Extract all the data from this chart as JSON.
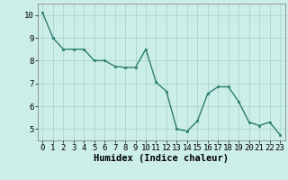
{
  "x": [
    0,
    1,
    2,
    3,
    4,
    5,
    6,
    7,
    8,
    9,
    10,
    11,
    12,
    13,
    14,
    15,
    16,
    17,
    18,
    19,
    20,
    21,
    22,
    23
  ],
  "y": [
    10.1,
    9.0,
    8.5,
    8.5,
    8.5,
    8.0,
    8.0,
    7.75,
    7.7,
    7.7,
    8.5,
    7.05,
    6.65,
    5.0,
    4.9,
    5.35,
    6.55,
    6.85,
    6.85,
    6.2,
    5.3,
    5.15,
    5.3,
    4.75
  ],
  "line_color": "#2d7d6e",
  "marker_color": "#2d7d6e",
  "bg_color": "#cceee8",
  "grid_color": "#aad4ce",
  "xlabel": "Humidex (Indice chaleur)",
  "ylim": [
    4.5,
    10.5
  ],
  "xlim": [
    -0.5,
    23.5
  ],
  "yticks": [
    5,
    6,
    7,
    8,
    9,
    10
  ],
  "xticks": [
    0,
    1,
    2,
    3,
    4,
    5,
    6,
    7,
    8,
    9,
    10,
    11,
    12,
    13,
    14,
    15,
    16,
    17,
    18,
    19,
    20,
    21,
    22,
    23
  ],
  "xlabel_fontsize": 7.5,
  "tick_fontsize": 6.5,
  "figsize": [
    3.2,
    2.0
  ],
  "dpi": 100
}
